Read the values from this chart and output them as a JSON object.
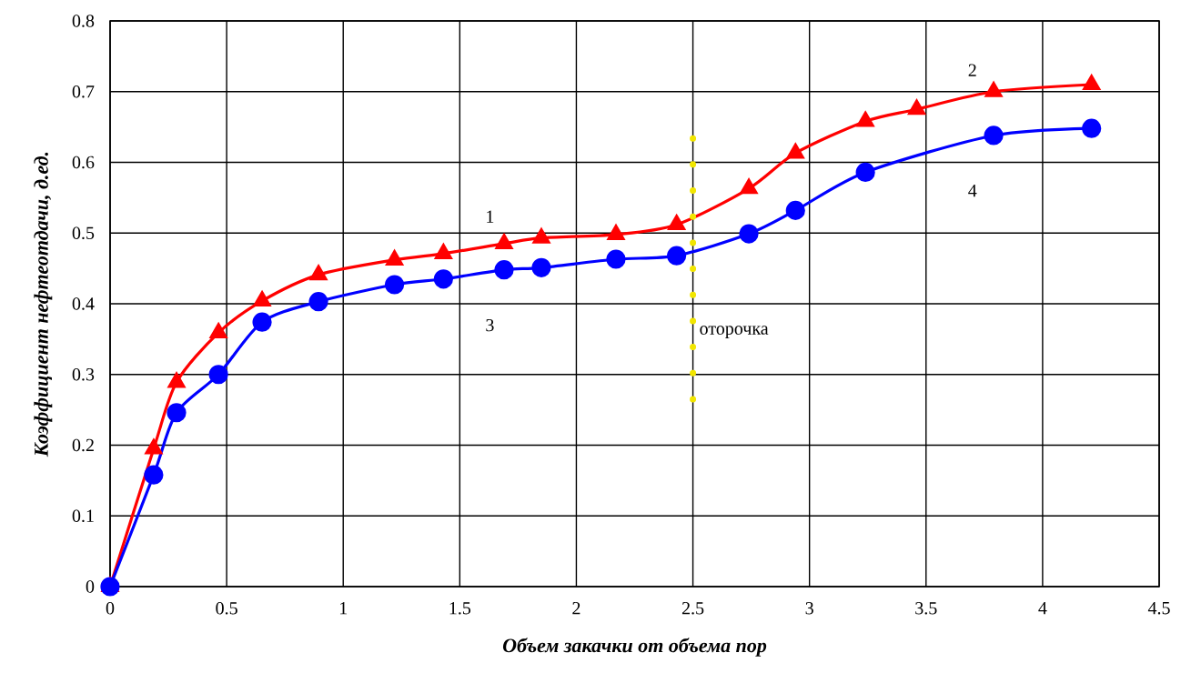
{
  "chart_data": {
    "type": "line",
    "xlabel": "Объем закачки от объема пор",
    "ylabel": "Коэффициент нефтеотдачи, д.ед.",
    "xlim": [
      0,
      4.5
    ],
    "ylim": [
      0,
      0.8
    ],
    "xticks": [
      0,
      0.5,
      1,
      1.5,
      2,
      2.5,
      3,
      3.5,
      4,
      4.5
    ],
    "yticks": [
      0,
      0.1,
      0.2,
      0.3,
      0.4,
      0.5,
      0.6,
      0.7,
      0.8
    ],
    "grid": true,
    "series": [
      {
        "color": "#ff0000",
        "marker": "triangle",
        "line_style": "solid",
        "x": [
          0,
          0.187,
          0.285,
          0.465,
          0.652,
          0.894,
          1.22,
          1.43,
          1.69,
          1.85,
          2.17,
          2.43,
          2.74,
          2.94,
          3.24,
          3.46,
          3.79,
          4.21
        ],
        "values": [
          0,
          0.195,
          0.289,
          0.359,
          0.404,
          0.441,
          0.462,
          0.471,
          0.485,
          0.493,
          0.498,
          0.512,
          0.563,
          0.613,
          0.658,
          0.675,
          0.7,
          0.71
        ]
      },
      {
        "color": "#0000ff",
        "marker": "circle",
        "line_style": "solid",
        "x": [
          0,
          0.187,
          0.285,
          0.465,
          0.652,
          0.894,
          1.22,
          1.43,
          1.69,
          1.85,
          2.17,
          2.43,
          2.74,
          2.94,
          3.24,
          3.79,
          4.21
        ],
        "values": [
          0,
          0.158,
          0.246,
          0.3,
          0.374,
          0.403,
          0.427,
          0.435,
          0.448,
          0.451,
          0.463,
          0.468,
          0.499,
          0.532,
          0.586,
          0.638,
          0.648
        ]
      },
      {
        "color": "#f2e600",
        "marker": "none",
        "line_style": "dotted",
        "x": [
          2.5,
          2.5
        ],
        "values": [
          0.265,
          0.635
        ]
      }
    ],
    "annotations": [
      "1",
      "2",
      "3",
      "4",
      {
        "text": "оторочка",
        "x": 2.5,
        "y": 0.36
      }
    ]
  }
}
